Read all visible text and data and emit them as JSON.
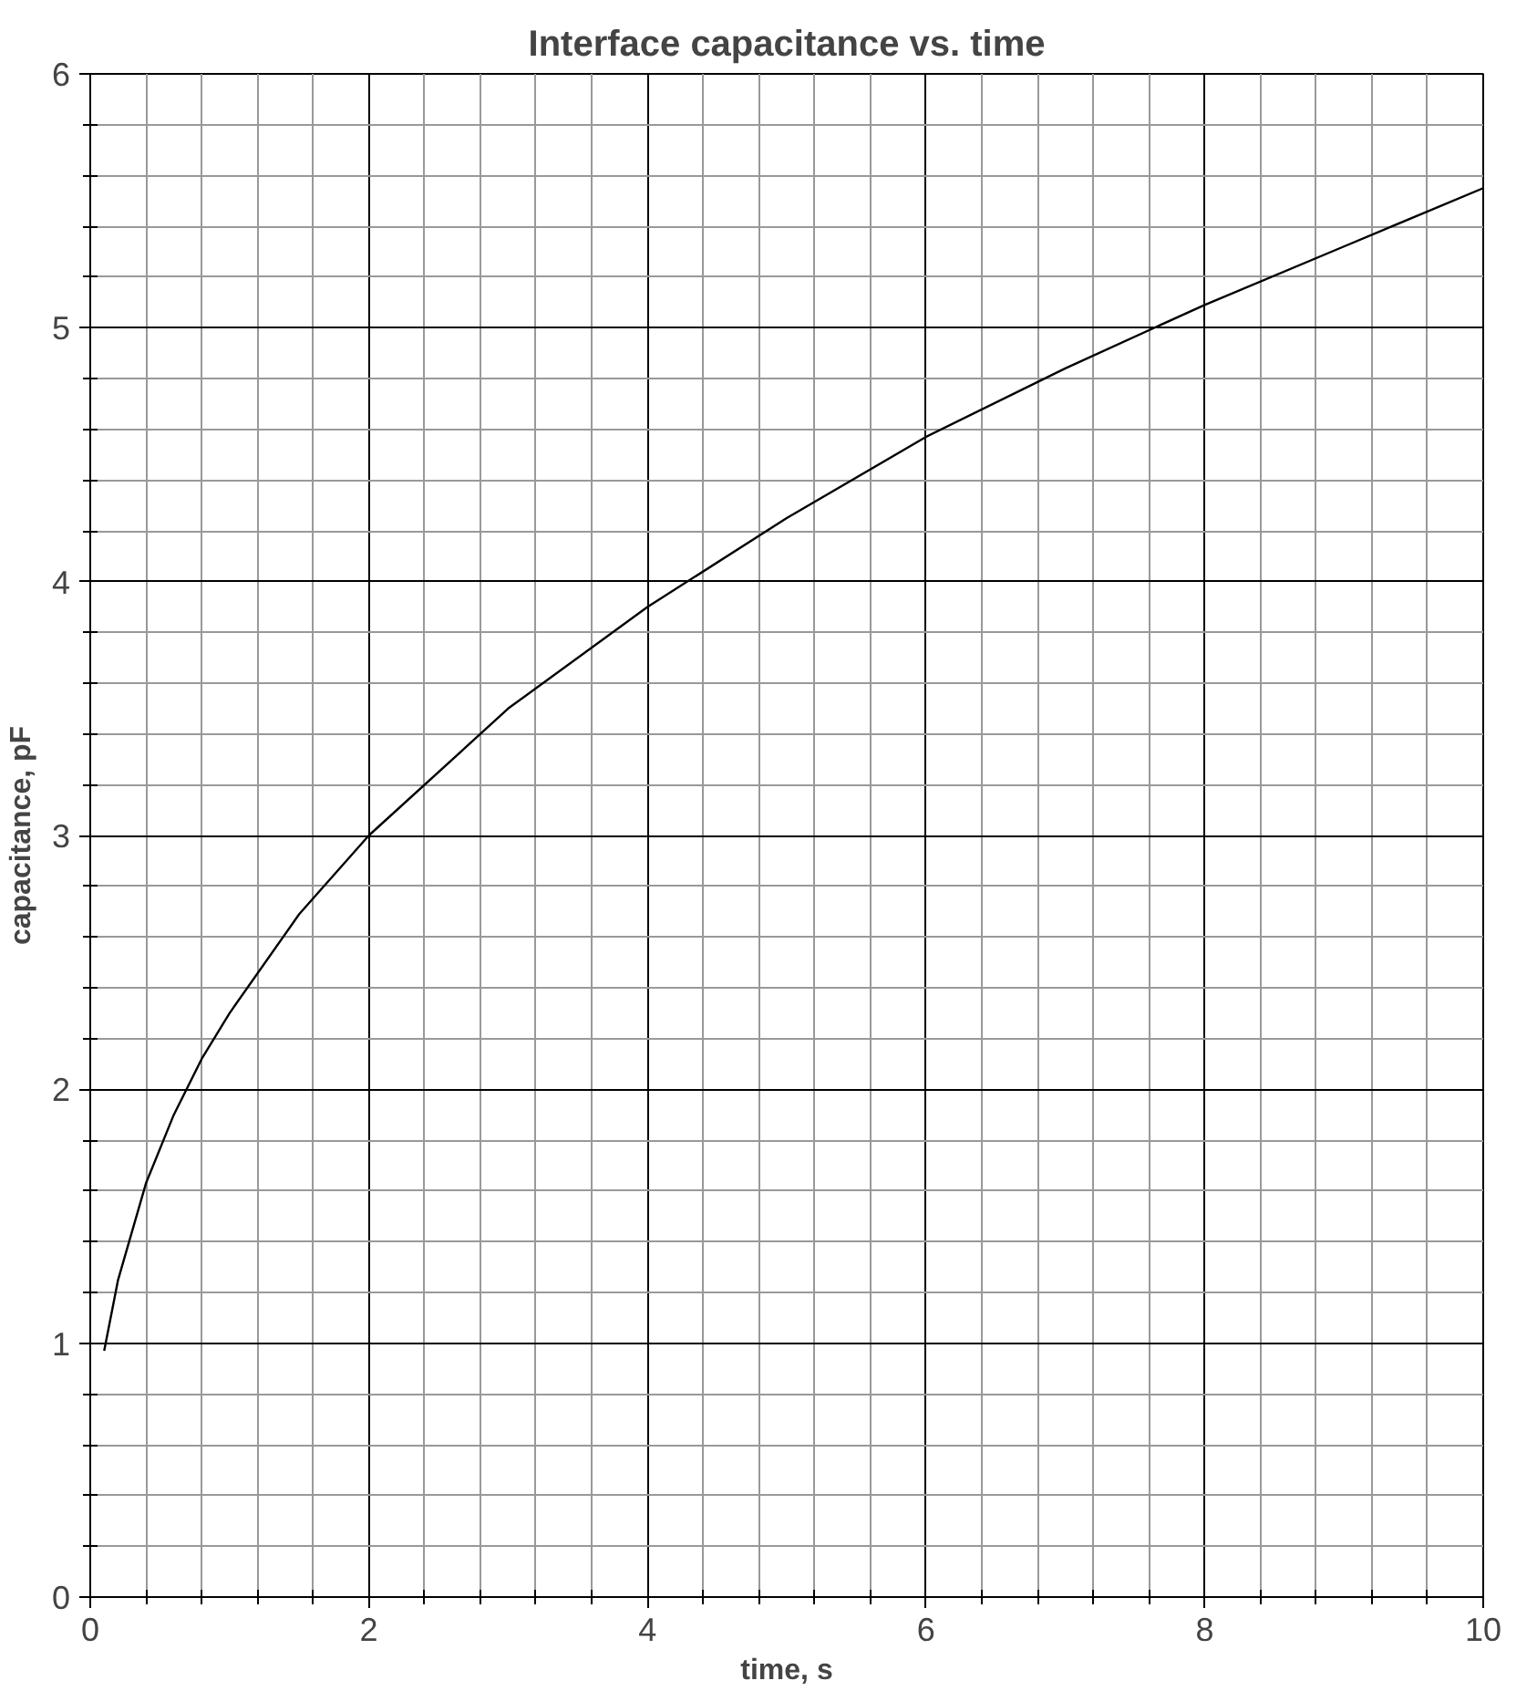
{
  "chart_data": {
    "type": "line",
    "title": "Interface capacitance vs. time",
    "xlabel": "time, s",
    "ylabel": "capacitance, pF",
    "x": [
      0.1,
      0.2,
      0.4,
      0.6,
      0.8,
      1,
      1.5,
      2,
      3,
      4,
      5,
      6,
      7,
      8,
      9,
      10
    ],
    "series": [
      {
        "color": "#000000",
        "values": [
          0.97,
          1.25,
          1.63,
          1.9,
          2.12,
          2.3,
          2.69,
          3.0,
          3.5,
          3.9,
          4.25,
          4.57,
          4.84,
          5.09,
          5.32,
          5.55
        ]
      }
    ],
    "xlim": [
      0,
      10
    ],
    "ylim": [
      0,
      6
    ],
    "xticks": [
      0,
      2,
      4,
      6,
      8,
      10
    ],
    "yticks": [
      0,
      1,
      2,
      3,
      4,
      5,
      6
    ],
    "grid": true,
    "marker": "none",
    "line_style": "solid"
  }
}
